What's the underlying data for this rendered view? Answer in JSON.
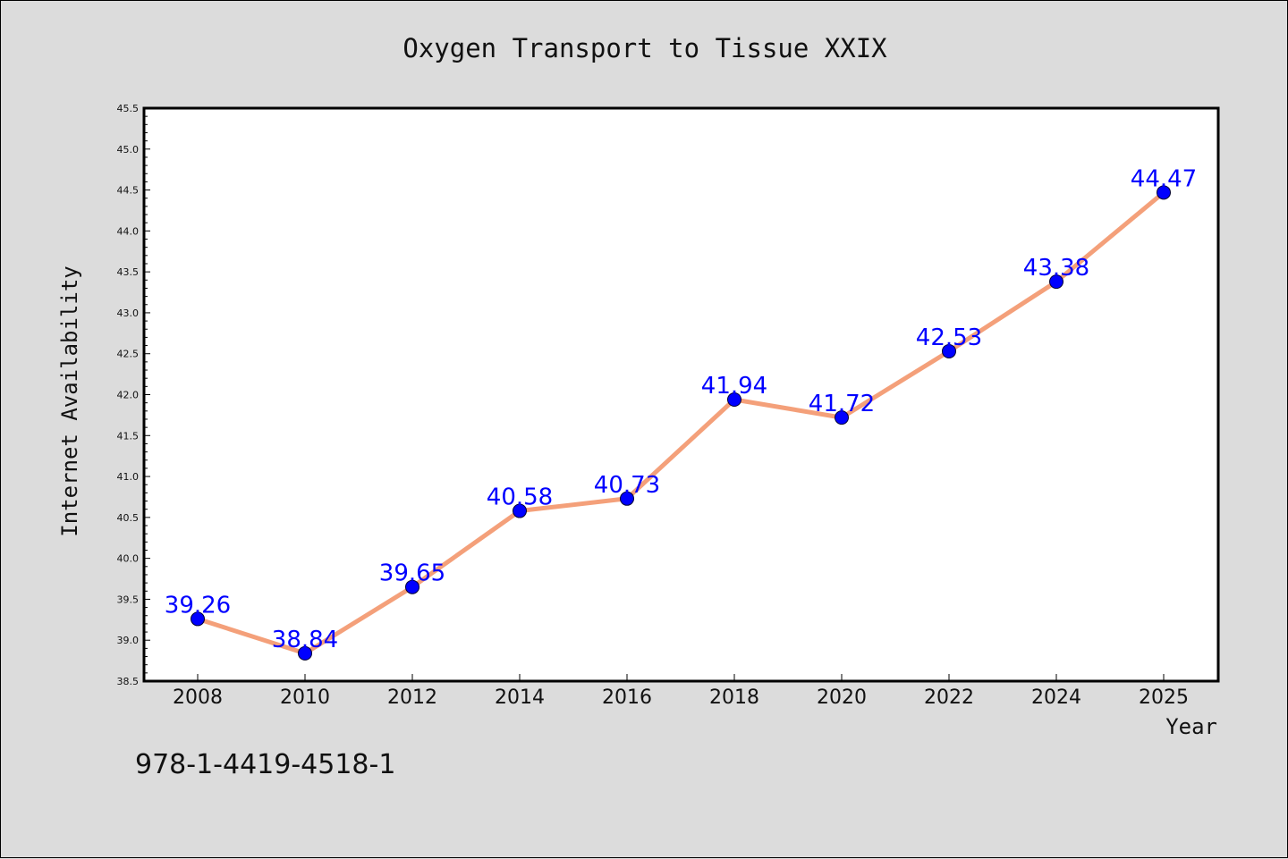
{
  "chart_data": {
    "type": "line",
    "title": "Oxygen Transport to Tissue XXIX",
    "xlabel": "Year",
    "ylabel": "Internet Availability",
    "x": [
      2008,
      2010,
      2012,
      2014,
      2016,
      2018,
      2020,
      2022,
      2024,
      2025
    ],
    "series": [
      {
        "values": [
          39.26,
          38.84,
          39.65,
          40.58,
          40.73,
          41.94,
          41.72,
          42.53,
          43.38,
          44.47
        ],
        "line_color": "#f4a07a",
        "marker_color": "#0000ff"
      }
    ],
    "data_labels": [
      "39.26",
      "38.84",
      "39.65",
      "40.58",
      "40.73",
      "41.94",
      "41.72",
      "42.53",
      "43.38",
      "44.47"
    ],
    "x_tick_labels": [
      "2008",
      "2010",
      "2012",
      "2014",
      "2016",
      "2018",
      "2020",
      "2022",
      "2024",
      "2025"
    ],
    "y_ticks": [
      38.5,
      39.0,
      39.5,
      40.0,
      40.5,
      41.0,
      41.5,
      42.0,
      42.5,
      43.0,
      43.5,
      44.0,
      44.5,
      45.0,
      45.5
    ],
    "y_tick_labels": [
      "38.5",
      "39.0",
      "39.5",
      "40.0",
      "40.5",
      "41.0",
      "41.5",
      "42.0",
      "42.5",
      "43.0",
      "43.5",
      "44.0",
      "44.5",
      "45.0",
      "45.5"
    ],
    "ylim": [
      38.5,
      45.5
    ],
    "grid": false,
    "background_color": "#dcdcdc",
    "plot_background_color": "#ffffff"
  },
  "footer": {
    "isbn": "978-1-4419-4518-1"
  }
}
